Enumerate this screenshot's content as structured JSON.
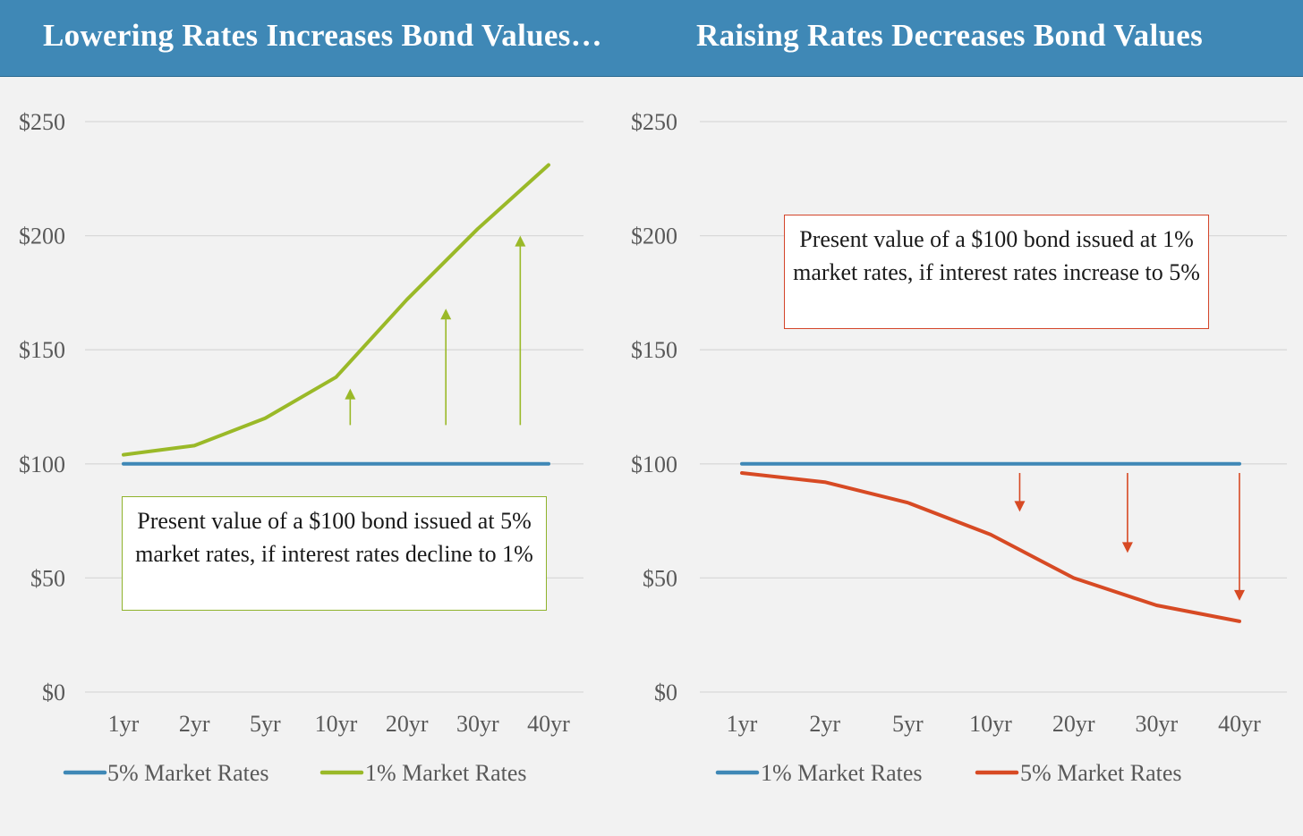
{
  "header": {
    "left_title": "Lowering Rates Increases Bond Values…",
    "right_title": "Raising Rates Decreases Bond Values"
  },
  "colors": {
    "header_bg": "#3f88b6",
    "blue_series": "#3f88b6",
    "green_series": "#9ab928",
    "orange_series": "#d74a24"
  },
  "chart_data": [
    {
      "type": "line",
      "categories": [
        "1yr",
        "2yr",
        "5yr",
        "10yr",
        "20yr",
        "30yr",
        "40yr"
      ],
      "y_tick_labels": [
        "$0",
        "$50",
        "$100",
        "$150",
        "$200",
        "$250"
      ],
      "ylim": [
        0,
        250
      ],
      "grid": true,
      "legend_position": "bottom",
      "series": [
        {
          "name": "5% Market Rates",
          "color": "#3f88b6",
          "values": [
            100,
            100,
            100,
            100,
            100,
            100,
            100
          ]
        },
        {
          "name": "1% Market Rates",
          "color": "#9ab928",
          "values": [
            104,
            108,
            120,
            138,
            172,
            203,
            231
          ]
        }
      ],
      "arrows": {
        "direction": "up",
        "color": "#9ab928",
        "x": [
          3.2,
          4.55,
          5.6
        ],
        "y_from": [
          117,
          117,
          117
        ],
        "y_to": [
          133,
          168,
          200
        ]
      },
      "annotation": "Present value of a $100 bond issued at 5% market rates, if interest rates decline to 1%"
    },
    {
      "type": "line",
      "categories": [
        "1yr",
        "2yr",
        "5yr",
        "10yr",
        "20yr",
        "30yr",
        "40yr"
      ],
      "y_tick_labels": [
        "$0",
        "$50",
        "$100",
        "$150",
        "$200",
        "$250"
      ],
      "ylim": [
        0,
        250
      ],
      "grid": true,
      "legend_position": "bottom",
      "series": [
        {
          "name": "1% Market Rates",
          "color": "#3f88b6",
          "values": [
            100,
            100,
            100,
            100,
            100,
            100,
            100
          ]
        },
        {
          "name": "5% Market Rates",
          "color": "#d74a24",
          "values": [
            96,
            92,
            83,
            69,
            50,
            38,
            31
          ]
        }
      ],
      "arrows": {
        "direction": "down",
        "color": "#d74a24",
        "x": [
          3.35,
          4.65,
          6.0
        ],
        "y_from": [
          96,
          96,
          96
        ],
        "y_to": [
          79,
          61,
          40
        ]
      },
      "annotation": "Present value of a $100 bond issued at 1% market rates, if interest rates increase to 5%"
    }
  ]
}
